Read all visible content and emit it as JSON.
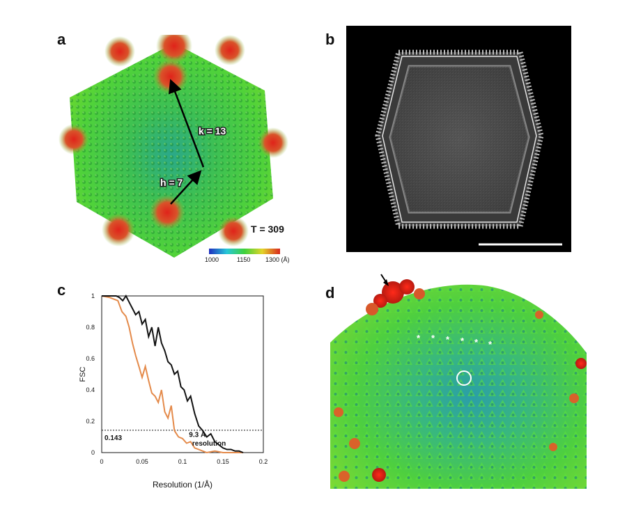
{
  "panels": {
    "a": {
      "label": "a",
      "k_label": "k = 13",
      "h_label": "h = 7",
      "t_label": "T = 309",
      "colorbar": {
        "ticks": [
          "1000",
          "1150",
          "1300 (Å)"
        ],
        "colors": [
          "#1f2fbf",
          "#27c7d8",
          "#3fd13b",
          "#e3d42a",
          "#d9281e"
        ]
      }
    },
    "b": {
      "label": "b"
    },
    "c": {
      "label": "c"
    },
    "d": {
      "label": "d"
    }
  },
  "chart_data": {
    "type": "line",
    "xlabel": "Resolution (1/Å)",
    "ylabel": "FSC",
    "xlim": [
      0,
      0.2
    ],
    "ylim": [
      0,
      1
    ],
    "x_ticks": [
      "0",
      "0.05",
      "0.1",
      "0.15",
      "0.2"
    ],
    "y_ticks": [
      "0",
      "0.2",
      "0.4",
      "0.6",
      "0.8",
      "1"
    ],
    "threshold": {
      "value": 0.143,
      "label": "0.143"
    },
    "annotation": {
      "line1": "9.3 Å",
      "line2": "resolution"
    },
    "series": [
      {
        "name": "black",
        "color": "#111111",
        "x": [
          0.0,
          0.01,
          0.018,
          0.022,
          0.026,
          0.03,
          0.035,
          0.038,
          0.042,
          0.046,
          0.05,
          0.054,
          0.058,
          0.062,
          0.066,
          0.07,
          0.074,
          0.078,
          0.082,
          0.086,
          0.09,
          0.094,
          0.098,
          0.102,
          0.106,
          0.11,
          0.115,
          0.12,
          0.125,
          0.13,
          0.135,
          0.14,
          0.145,
          0.15,
          0.155,
          0.16,
          0.165,
          0.17,
          0.175
        ],
        "y": [
          1.0,
          1.0,
          1.0,
          0.99,
          0.97,
          1.0,
          0.95,
          0.92,
          0.88,
          0.9,
          0.82,
          0.85,
          0.74,
          0.8,
          0.68,
          0.8,
          0.7,
          0.65,
          0.58,
          0.56,
          0.5,
          0.52,
          0.42,
          0.4,
          0.33,
          0.36,
          0.25,
          0.17,
          0.14,
          0.1,
          0.12,
          0.07,
          0.05,
          0.03,
          0.02,
          0.02,
          0.01,
          0.01,
          0.0
        ]
      },
      {
        "name": "orange",
        "color": "#e48a4a",
        "x": [
          0.0,
          0.01,
          0.02,
          0.025,
          0.03,
          0.034,
          0.038,
          0.042,
          0.046,
          0.05,
          0.054,
          0.058,
          0.062,
          0.066,
          0.07,
          0.074,
          0.078,
          0.082,
          0.086,
          0.09,
          0.095,
          0.1,
          0.105,
          0.11,
          0.115,
          0.12,
          0.125,
          0.13,
          0.14,
          0.15,
          0.16,
          0.175
        ],
        "y": [
          1.0,
          0.99,
          0.97,
          0.9,
          0.87,
          0.8,
          0.7,
          0.62,
          0.55,
          0.48,
          0.55,
          0.46,
          0.38,
          0.36,
          0.32,
          0.4,
          0.26,
          0.22,
          0.3,
          0.14,
          0.1,
          0.09,
          0.06,
          0.07,
          0.03,
          0.02,
          0.01,
          0.0,
          0.01,
          0.0,
          0.0,
          0.0
        ]
      }
    ]
  }
}
